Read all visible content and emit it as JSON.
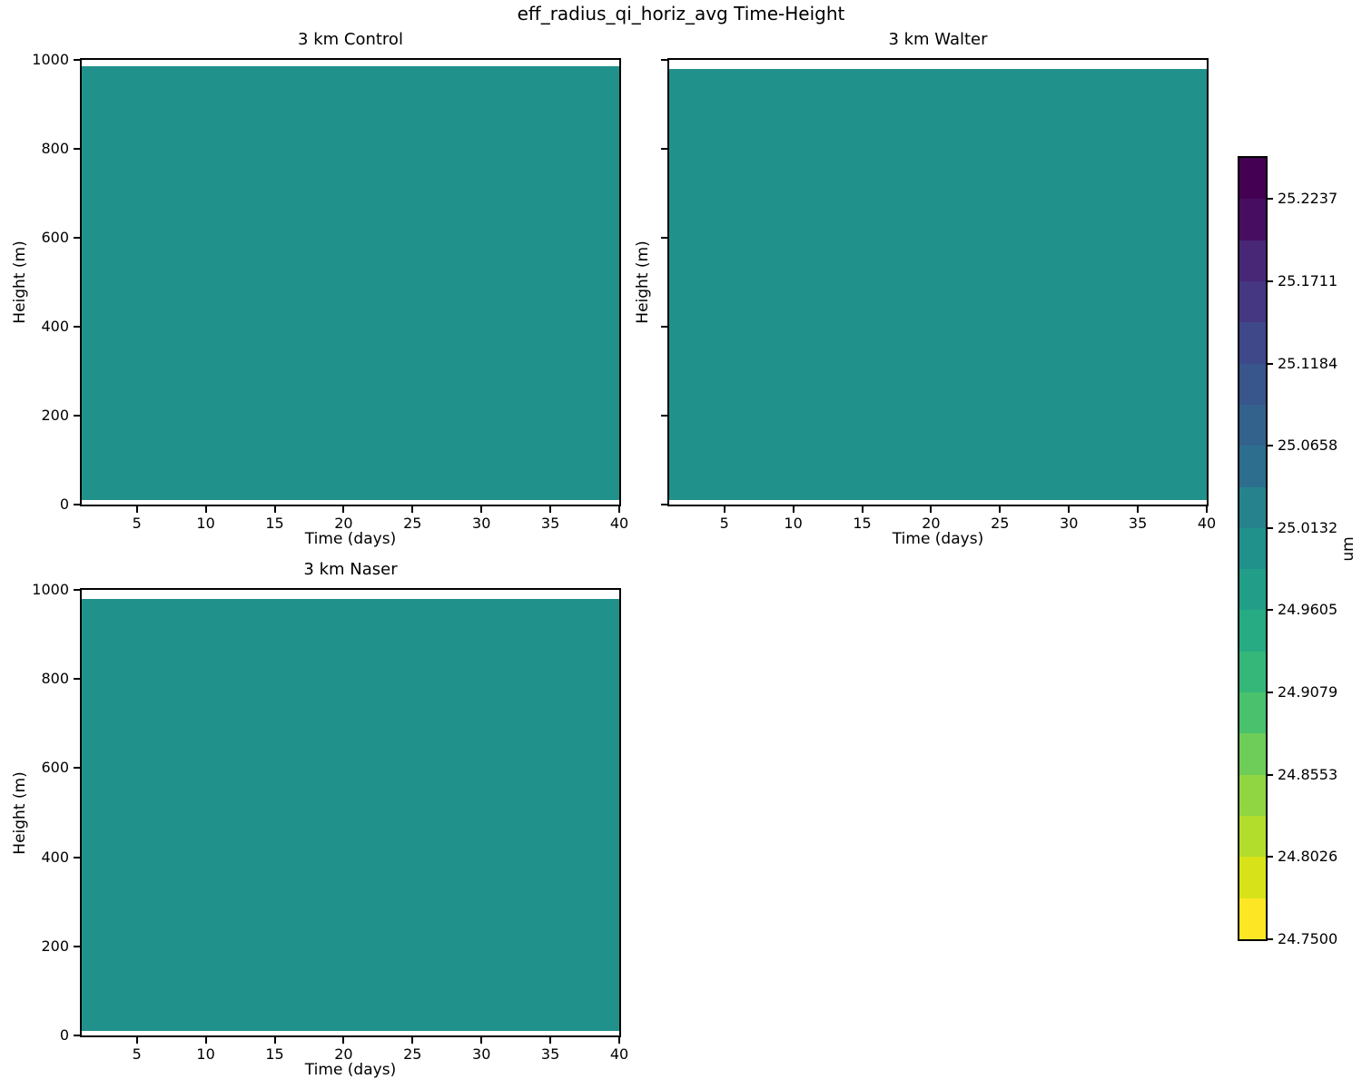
{
  "figure_title": "eff_radius_qi_horiz_avg Time-Height",
  "chart_data": {
    "type": "heatmap",
    "colormap": "viridis reversed (low values yellow at bottom, high values dark purple at top)",
    "subplots": [
      {
        "title": "3 km Control",
        "xlabel": "Time (days)",
        "ylabel": "Height (m)",
        "x_range": [
          1,
          40
        ],
        "y_range": [
          0,
          1000
        ],
        "xticks": [
          5,
          10,
          15,
          20,
          25,
          30,
          35,
          40
        ],
        "yticks": [
          0,
          200,
          400,
          600,
          800,
          1000
        ],
        "show_ytick_labels": true,
        "uniform_value_um": 25.0,
        "fill_color": "#21918c",
        "fill_height_extent_m": [
          10,
          985
        ]
      },
      {
        "title": "3 km Walter",
        "xlabel": "Time (days)",
        "ylabel": "Height (m)",
        "x_range": [
          1,
          40
        ],
        "y_range": [
          0,
          1000
        ],
        "xticks": [
          5,
          10,
          15,
          20,
          25,
          30,
          35,
          40
        ],
        "yticks": [
          0,
          200,
          400,
          600,
          800,
          1000
        ],
        "show_ytick_labels": false,
        "uniform_value_um": 25.0,
        "fill_color": "#21918c",
        "fill_height_extent_m": [
          10,
          979
        ]
      },
      {
        "title": "3 km Naser",
        "xlabel": "Time (days)",
        "ylabel": "Height (m)",
        "x_range": [
          1,
          40
        ],
        "y_range": [
          0,
          1000
        ],
        "xticks": [
          5,
          10,
          15,
          20,
          25,
          30,
          35,
          40
        ],
        "yticks": [
          0,
          200,
          400,
          600,
          800,
          1000
        ],
        "show_ytick_labels": true,
        "uniform_value_um": 25.0,
        "fill_color": "#21918c",
        "fill_height_extent_m": [
          10,
          979
        ]
      }
    ],
    "colorbar": {
      "unit_label": "um",
      "value_min": 24.75,
      "value_max": 25.25,
      "n_segments": 19,
      "tick_labels_top_to_bottom": [
        "25.2237",
        "25.1711",
        "25.1184",
        "25.0658",
        "25.0132",
        "24.9605",
        "24.9079",
        "24.8553",
        "24.8026",
        "24.7500"
      ],
      "segment_colors_bottom_to_top": [
        "#fde725",
        "#d8e219",
        "#b2dd2d",
        "#90d643",
        "#6ecd58",
        "#4ac16d",
        "#35b779",
        "#26ab82",
        "#229e88",
        "#21918c",
        "#26838d",
        "#2d6e8e",
        "#33628d",
        "#38568b",
        "#3f4889",
        "#453781",
        "#482777",
        "#470d60",
        "#440154"
      ]
    }
  }
}
